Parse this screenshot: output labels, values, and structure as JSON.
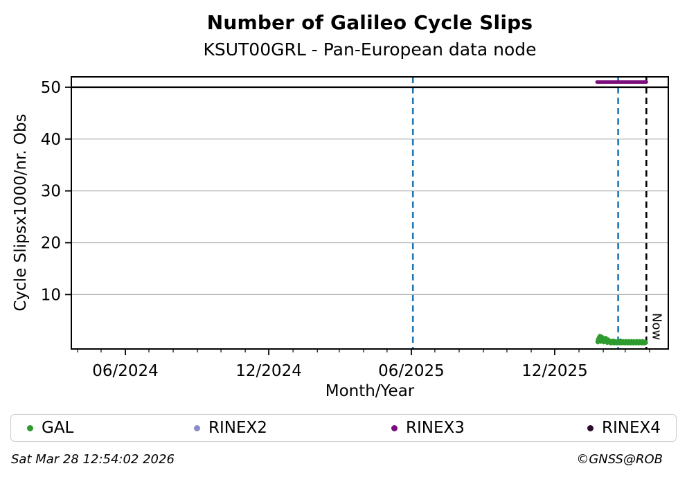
{
  "header": {
    "title": "Number of Galileo Cycle Slips",
    "subtitle": "KSUT00GRL - Pan-European data node"
  },
  "chart_data": {
    "type": "scatter",
    "title": "Number of Galileo Cycle Slips",
    "subtitle": "KSUT00GRL - Pan-European data node",
    "x_axis": {
      "label": "Month/Year",
      "range": [
        "2024-03-24",
        "2026-04-25"
      ],
      "major_ticks": [
        {
          "date": "2024-06-01",
          "label": "06/2024"
        },
        {
          "date": "2024-12-01",
          "label": "12/2024"
        },
        {
          "date": "2025-06-01",
          "label": "06/2025"
        },
        {
          "date": "2025-12-01",
          "label": "12/2025"
        }
      ],
      "minor_tick_interval": "month",
      "grid": false
    },
    "y_axis": {
      "label": "Cycle Slipsx1000/nr. Obs",
      "range": [
        -0.5,
        52
      ],
      "ticks": [
        10,
        20,
        30,
        40,
        50
      ],
      "grid": true,
      "grid_color": "#b0b0b0"
    },
    "series": [
      {
        "name": "GAL",
        "type": "scatter",
        "color": "#2e9b2e",
        "marker_radius": 2.4,
        "start_date": "2026-01-24",
        "points_day_value": [
          [
            0,
            0.9
          ],
          [
            0.5,
            1.3
          ],
          [
            1,
            0.7
          ],
          [
            1.5,
            1.6
          ],
          [
            2,
            1.0
          ],
          [
            2.5,
            1.9
          ],
          [
            3,
            1.2
          ],
          [
            3.5,
            2.1
          ],
          [
            4,
            1.5
          ],
          [
            4.5,
            0.8
          ],
          [
            5,
            1.7
          ],
          [
            5.5,
            2.0
          ],
          [
            6,
            1.1
          ],
          [
            6.5,
            1.5
          ],
          [
            7,
            0.9
          ],
          [
            7.5,
            1.8
          ],
          [
            8,
            1.2
          ],
          [
            8.5,
            0.7
          ],
          [
            9,
            1.4
          ],
          [
            9.5,
            1.0
          ],
          [
            10,
            1.6
          ],
          [
            10.5,
            0.8
          ],
          [
            11,
            1.2
          ],
          [
            11.5,
            1.7
          ],
          [
            12,
            0.9
          ],
          [
            12.5,
            1.3
          ],
          [
            13,
            0.6
          ],
          [
            13.5,
            1.1
          ],
          [
            14,
            0.8
          ],
          [
            14.5,
            1.4
          ],
          [
            15,
            0.7
          ],
          [
            15.5,
            1.0
          ],
          [
            16,
            1.2
          ],
          [
            16.5,
            0.6
          ],
          [
            17,
            0.9
          ],
          [
            17.5,
            1.1
          ],
          [
            18,
            0.5
          ],
          [
            18.5,
            0.8
          ],
          [
            19,
            1.0
          ],
          [
            19.5,
            0.6
          ],
          [
            20,
            0.9
          ],
          [
            20.5,
            1.2
          ],
          [
            21,
            0.7
          ],
          [
            21.5,
            1.0
          ],
          [
            22,
            0.5
          ],
          [
            22.5,
            0.8
          ],
          [
            23,
            1.1
          ],
          [
            23.5,
            0.6
          ],
          [
            24,
            0.9
          ],
          [
            24.5,
            0.7
          ],
          [
            25,
            1.0
          ],
          [
            25.5,
            0.5
          ],
          [
            26,
            0.8
          ],
          [
            26.5,
            1.1
          ],
          [
            27,
            0.6
          ],
          [
            27.5,
            0.9
          ],
          [
            28,
            0.7
          ],
          [
            28.5,
            1.0
          ],
          [
            29,
            0.5
          ],
          [
            29.5,
            0.8
          ],
          [
            30,
            1.2
          ],
          [
            30.5,
            0.6
          ],
          [
            31,
            0.9
          ],
          [
            31.5,
            0.7
          ],
          [
            32,
            1.0
          ],
          [
            32.5,
            0.5
          ],
          [
            33,
            0.8
          ],
          [
            33.5,
            1.1
          ],
          [
            34,
            0.6
          ],
          [
            34.5,
            0.9
          ],
          [
            35,
            0.7
          ],
          [
            35.5,
            1.0
          ],
          [
            36,
            0.5
          ],
          [
            36.5,
            0.8
          ],
          [
            37,
            1.1
          ],
          [
            37.5,
            0.6
          ],
          [
            38,
            0.9
          ],
          [
            38.5,
            0.7
          ],
          [
            39,
            1.0
          ],
          [
            39.5,
            0.5
          ],
          [
            40,
            0.8
          ],
          [
            40.5,
            1.1
          ],
          [
            41,
            0.6
          ],
          [
            41.5,
            0.9
          ],
          [
            42,
            0.7
          ],
          [
            42.5,
            1.0
          ],
          [
            43,
            0.5
          ],
          [
            43.5,
            0.8
          ],
          [
            44,
            1.1
          ],
          [
            44.5,
            0.6
          ],
          [
            45,
            0.9
          ],
          [
            45.5,
            0.7
          ],
          [
            46,
            1.0
          ],
          [
            46.5,
            0.5
          ],
          [
            47,
            0.8
          ],
          [
            47.5,
            1.1
          ],
          [
            48,
            0.6
          ],
          [
            48.5,
            0.9
          ],
          [
            49,
            0.7
          ],
          [
            49.5,
            1.0
          ],
          [
            50,
            0.5
          ],
          [
            50.5,
            0.8
          ],
          [
            51,
            1.1
          ],
          [
            51.5,
            0.6
          ],
          [
            52,
            0.9
          ],
          [
            52.5,
            0.7
          ],
          [
            53,
            1.0
          ],
          [
            53.5,
            0.5
          ],
          [
            54,
            0.8
          ],
          [
            54.5,
            1.1
          ],
          [
            55,
            0.6
          ],
          [
            55.5,
            0.9
          ],
          [
            56,
            0.7
          ],
          [
            56.5,
            1.0
          ],
          [
            57,
            0.5
          ],
          [
            57.5,
            0.8
          ],
          [
            58,
            1.1
          ],
          [
            58.5,
            0.6
          ],
          [
            59,
            0.9
          ],
          [
            59.5,
            0.7
          ],
          [
            60,
            1.0
          ],
          [
            60.5,
            0.5
          ],
          [
            61,
            0.8
          ],
          [
            61.5,
            1.0
          ],
          [
            62,
            0.6
          ],
          [
            62.5,
            0.9
          ],
          [
            63,
            0.7
          ]
        ]
      },
      {
        "name": "RINEX3",
        "type": "segment",
        "color": "#7c0e7c",
        "y": 51,
        "start": "2026-01-24",
        "end": "2026-03-28",
        "width": 5
      }
    ],
    "events": [
      {
        "type": "vline",
        "date": "2025-06-03",
        "color": "#1f77b4",
        "dashed": true,
        "label": ""
      },
      {
        "type": "vline",
        "date": "2026-02-20",
        "color": "#1f77b4",
        "dashed": true,
        "label": ""
      },
      {
        "type": "vline",
        "date": "2026-03-28",
        "color": "#000000",
        "dashed": true,
        "label": "Now"
      },
      {
        "type": "hline",
        "y": 50,
        "color": "#000000",
        "dashed": false,
        "label": ""
      }
    ]
  },
  "legend": {
    "items": [
      {
        "label": "GAL",
        "color": "#2e9b2e"
      },
      {
        "label": "RINEX2",
        "color": "#8a8ccc"
      },
      {
        "label": "RINEX3",
        "color": "#7c0e7c"
      },
      {
        "label": "RINEX4",
        "color": "#2b0a2e"
      }
    ]
  },
  "footer": {
    "timestamp": "Sat Mar 28 12:54:02 2026",
    "credit": "©GNSS@ROB"
  }
}
